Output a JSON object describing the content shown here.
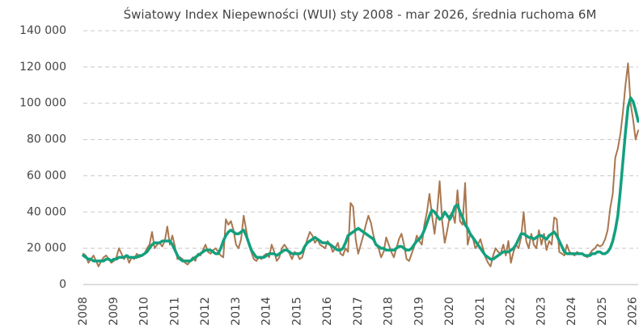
{
  "chart_data": {
    "type": "line",
    "title": "Światowy Index Niepewności (WUI) sty 2008 - mar 2026, średnia ruchoma 6M",
    "categories": [
      "2008",
      null,
      null,
      null,
      null,
      null,
      null,
      null,
      null,
      null,
      null,
      null,
      "2009",
      null,
      null,
      null,
      null,
      null,
      null,
      null,
      null,
      null,
      null,
      null,
      "2010",
      null,
      null,
      null,
      null,
      null,
      null,
      null,
      null,
      null,
      null,
      null,
      "2011",
      null,
      null,
      null,
      null,
      null,
      null,
      null,
      null,
      null,
      null,
      null,
      "2012",
      null,
      null,
      null,
      null,
      null,
      null,
      null,
      null,
      null,
      null,
      null,
      "2013",
      null,
      null,
      null,
      null,
      null,
      null,
      null,
      null,
      null,
      null,
      null,
      "2014",
      null,
      null,
      null,
      null,
      null,
      null,
      null,
      null,
      null,
      null,
      null,
      "2015",
      null,
      null,
      null,
      null,
      null,
      null,
      null,
      null,
      null,
      null,
      null,
      "2016",
      null,
      null,
      null,
      null,
      null,
      null,
      null,
      null,
      null,
      null,
      null,
      "2017",
      null,
      null,
      null,
      null,
      null,
      null,
      null,
      null,
      null,
      null,
      null,
      "2018",
      null,
      null,
      null,
      null,
      null,
      null,
      null,
      null,
      null,
      null,
      null,
      "2019",
      null,
      null,
      null,
      null,
      null,
      null,
      null,
      null,
      null,
      null,
      null,
      "2020",
      null,
      null,
      null,
      null,
      null,
      null,
      null,
      null,
      null,
      null,
      null,
      "2021",
      null,
      null,
      null,
      null,
      null,
      null,
      null,
      null,
      null,
      null,
      null,
      "2022",
      null,
      null,
      null,
      null,
      null,
      null,
      null,
      null,
      null,
      null,
      null,
      "2023",
      null,
      null,
      null,
      null,
      null,
      null,
      null,
      null,
      null,
      null,
      null,
      "2024",
      null,
      null,
      null,
      null,
      null,
      null,
      null,
      null,
      null,
      null,
      null,
      "2025",
      null,
      null,
      null,
      null,
      null,
      null,
      null,
      null,
      null,
      null,
      null,
      "2026",
      null,
      null
    ],
    "series": [
      {
        "color": "#a9774f",
        "values": [
          17000,
          16000,
          12000,
          14000,
          16000,
          13000,
          10000,
          13000,
          15000,
          16000,
          14000,
          12000,
          13000,
          15000,
          20000,
          17000,
          14000,
          16000,
          12000,
          15000,
          14000,
          17000,
          15000,
          16000,
          17000,
          20000,
          22000,
          29000,
          20000,
          22000,
          23000,
          21000,
          24000,
          32000,
          22000,
          27000,
          21000,
          14000,
          15000,
          14000,
          12000,
          11000,
          13000,
          15000,
          13000,
          17000,
          16000,
          19000,
          22000,
          18000,
          17000,
          19000,
          20000,
          18000,
          16000,
          15000,
          36000,
          33000,
          35000,
          30000,
          22000,
          20000,
          25000,
          38000,
          30000,
          22000,
          18000,
          14000,
          13000,
          15000,
          14000,
          16000,
          17000,
          15000,
          22000,
          18000,
          13000,
          15000,
          20000,
          22000,
          20000,
          17000,
          14000,
          18000,
          17000,
          14000,
          15000,
          20000,
          25000,
          29000,
          27000,
          23000,
          25000,
          22000,
          21000,
          20000,
          24000,
          22000,
          18000,
          20000,
          23000,
          17000,
          16000,
          20000,
          18000,
          45000,
          43000,
          25000,
          17000,
          22000,
          27000,
          33000,
          38000,
          34000,
          27000,
          22000,
          20000,
          15000,
          18000,
          26000,
          22000,
          18000,
          15000,
          20000,
          25000,
          28000,
          22000,
          14000,
          13000,
          17000,
          21000,
          27000,
          24000,
          22000,
          33000,
          40000,
          50000,
          38000,
          28000,
          40000,
          57000,
          35000,
          23000,
          30000,
          38000,
          40000,
          34000,
          52000,
          35000,
          33000,
          56000,
          22000,
          28000,
          26000,
          20000,
          22000,
          25000,
          20000,
          15000,
          12000,
          10000,
          16000,
          20000,
          18000,
          17000,
          22000,
          16000,
          24000,
          12000,
          18000,
          22000,
          20000,
          26000,
          40000,
          24000,
          20000,
          28000,
          22000,
          20000,
          30000,
          22000,
          28000,
          19000,
          24000,
          22000,
          37000,
          36000,
          18000,
          17000,
          16000,
          22000,
          18000,
          17000,
          16000,
          18000,
          17000,
          17000,
          16000,
          15000,
          17000,
          19000,
          20000,
          22000,
          21000,
          22000,
          25000,
          30000,
          42000,
          50000,
          70000,
          75000,
          83000,
          95000,
          110000,
          122000,
          100000,
          91000,
          80000,
          85000
        ]
      },
      {
        "color": "#13a07e",
        "values": [
          16000,
          15000,
          14000,
          14000,
          13000,
          13000,
          13000,
          13000,
          13000,
          14000,
          14000,
          13000,
          14000,
          14000,
          15000,
          15000,
          15000,
          16000,
          15000,
          15000,
          15000,
          15000,
          16000,
          16000,
          17000,
          18000,
          20000,
          22000,
          23000,
          23000,
          23000,
          24000,
          24000,
          24000,
          24000,
          22000,
          19000,
          16000,
          14000,
          13000,
          13000,
          13000,
          13000,
          14000,
          15000,
          16000,
          17000,
          18000,
          19000,
          19000,
          19000,
          18000,
          17000,
          17000,
          20000,
          24000,
          27000,
          29000,
          30000,
          29000,
          28000,
          28000,
          29000,
          30000,
          27000,
          23000,
          19000,
          17000,
          15000,
          15000,
          15000,
          15000,
          16000,
          17000,
          17000,
          17000,
          16000,
          17000,
          18000,
          19000,
          19000,
          18000,
          17000,
          17000,
          17000,
          17000,
          18000,
          21000,
          23000,
          24000,
          25000,
          26000,
          25000,
          24000,
          23000,
          23000,
          23000,
          22000,
          21000,
          20000,
          19000,
          19000,
          20000,
          23000,
          27000,
          28000,
          29000,
          30000,
          31000,
          30000,
          29000,
          28000,
          27000,
          26000,
          25000,
          22000,
          21000,
          20000,
          20000,
          19000,
          19000,
          19000,
          19000,
          20000,
          21000,
          21000,
          20000,
          19000,
          19000,
          20000,
          22000,
          24000,
          25000,
          27000,
          30000,
          34000,
          38000,
          41000,
          40000,
          38000,
          36000,
          37000,
          40000,
          38000,
          36000,
          39000,
          43000,
          44000,
          40000,
          37000,
          33000,
          31000,
          28000,
          26000,
          24000,
          22000,
          20000,
          18000,
          16000,
          15000,
          14000,
          14000,
          15000,
          16000,
          17000,
          18000,
          18000,
          18000,
          19000,
          20000,
          22000,
          25000,
          28000,
          28000,
          27000,
          26000,
          26000,
          25000,
          26000,
          27000,
          27000,
          26000,
          25000,
          27000,
          28000,
          29000,
          27000,
          24000,
          21000,
          18000,
          17000,
          17000,
          17000,
          17000,
          17000,
          17000,
          17000,
          16000,
          16000,
          16000,
          17000,
          17000,
          18000,
          18000,
          17000,
          17000,
          18000,
          20000,
          24000,
          30000,
          38000,
          52000,
          68000,
          84000,
          98000,
          103000,
          101000,
          96000,
          90000
        ]
      }
    ],
    "ylim": [
      0,
      140000
    ],
    "yticks": [
      0,
      {
        "value": 20000,
        "label": "20 000"
      },
      {
        "value": 40000,
        "label": "40 000"
      },
      {
        "value": 60000,
        "label": "60 000"
      },
      {
        "value": 80000,
        "label": "80 000"
      },
      {
        "value": 100000,
        "label": "100 000"
      },
      {
        "value": 120000,
        "label": "120 000"
      },
      {
        "value": 140000,
        "label": "140 000"
      }
    ],
    "grid": true
  }
}
